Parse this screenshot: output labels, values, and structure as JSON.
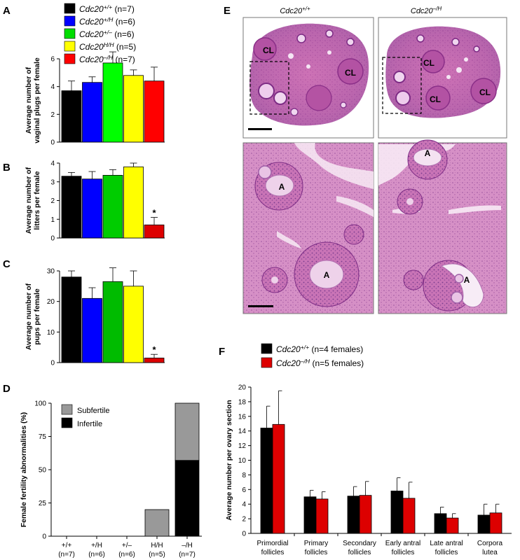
{
  "panel_letters": {
    "A": "A",
    "B": "B",
    "C": "C",
    "D": "D",
    "E": "E",
    "F": "F"
  },
  "genotype_legend": [
    {
      "base": "Cdc20",
      "sup": "+/+",
      "n": " (n=7)",
      "color": "#000000"
    },
    {
      "base": "Cdc20",
      "sup": "+/H",
      "n": " (n=6)",
      "color": "#0000ff"
    },
    {
      "base": "Cdc20",
      "sup": "+/–",
      "n": " (n=6)",
      "color": "#00dd00"
    },
    {
      "base": "Cdc20",
      "sup": "H/H",
      "n": " (n=5)",
      "color": "#ffff00"
    },
    {
      "base": "Cdc20",
      "sup": "–/H",
      "n": " (n=7)",
      "color": "#ff0000"
    }
  ],
  "chart_data": [
    {
      "id": "A",
      "type": "bar",
      "ylabel_lines": [
        "Average number of",
        "vaginal plugs per female"
      ],
      "ylim": [
        0,
        6
      ],
      "yticks": [
        0,
        2,
        4,
        6
      ],
      "values": [
        3.7,
        4.3,
        5.7,
        4.8,
        4.4
      ],
      "errors": [
        0.7,
        0.4,
        0.8,
        0.4,
        1.0
      ],
      "colors": [
        "#000000",
        "#0000ff",
        "#00ff00",
        "#ffff00",
        "#ff0000"
      ],
      "stars": []
    },
    {
      "id": "B",
      "type": "bar",
      "ylabel_lines": [
        "Average number of",
        "litters per female"
      ],
      "ylim": [
        0,
        4
      ],
      "yticks": [
        0,
        1,
        2,
        3,
        4
      ],
      "values": [
        3.3,
        3.15,
        3.35,
        3.8,
        0.7
      ],
      "errors": [
        0.2,
        0.4,
        0.3,
        0.2,
        0.4
      ],
      "colors": [
        "#000000",
        "#0000ff",
        "#00cc00",
        "#ffff00",
        "#dd0000"
      ],
      "stars": [
        4
      ],
      "star_text": "*"
    },
    {
      "id": "C",
      "type": "bar",
      "ylabel_lines": [
        "Average number of",
        "pups per female"
      ],
      "ylim": [
        0,
        30
      ],
      "yticks": [
        0,
        10,
        20,
        30
      ],
      "values": [
        28,
        21,
        26.5,
        25,
        1.5
      ],
      "errors": [
        2,
        3.5,
        4.5,
        5,
        1.2
      ],
      "colors": [
        "#000000",
        "#0000ff",
        "#00bb00",
        "#ffff00",
        "#dd0000"
      ],
      "stars": [
        4
      ],
      "star_text": "*"
    },
    {
      "id": "D",
      "type": "bar",
      "ylabel": "Female fertility abnormalities (%)",
      "ylim": [
        0,
        100
      ],
      "yticks": [
        0,
        25,
        50,
        75,
        100
      ],
      "categories": [
        "+/+",
        "+/H",
        "+/–",
        "H/H",
        "–/H"
      ],
      "ns": [
        "(n=7)",
        "(n=6)",
        "(n=6)",
        "(n=5)",
        "(n=7)"
      ],
      "series": [
        {
          "name": "Infertile",
          "color": "#000000",
          "values": [
            0,
            0,
            0,
            0,
            57
          ]
        },
        {
          "name": "Subfertile",
          "color": "#999999",
          "values": [
            0,
            0,
            0,
            20,
            43
          ]
        }
      ]
    },
    {
      "id": "F",
      "type": "bar",
      "ylabel": "Average number per ovary section",
      "ylim": [
        0,
        20
      ],
      "yticks": [
        0,
        2,
        4,
        6,
        8,
        10,
        12,
        14,
        16,
        18,
        20
      ],
      "categories": [
        [
          "Primordial",
          "follicles"
        ],
        [
          "Primary",
          "follicles"
        ],
        [
          "Secondary",
          "follicles"
        ],
        [
          "Early antral",
          "follicles"
        ],
        [
          "Late antral",
          "follicles"
        ],
        [
          "Corpora",
          "lutea"
        ]
      ],
      "series": [
        {
          "base": "Cdc20",
          "sup": "+/+",
          "n": " (n=4 females)",
          "color": "#000000",
          "values": [
            14.4,
            5.0,
            5.1,
            5.8,
            2.7,
            2.5
          ],
          "errors": [
            3.0,
            0.9,
            1.3,
            1.8,
            0.9,
            1.5
          ]
        },
        {
          "base": "Cdc20",
          "sup": "–/H",
          "n": " (n=5 females)",
          "color": "#dd0000",
          "values": [
            14.9,
            4.7,
            5.2,
            4.8,
            2.1,
            2.8
          ],
          "errors": [
            4.6,
            1.0,
            1.9,
            2.2,
            0.6,
            1.2
          ]
        }
      ]
    }
  ],
  "histology": {
    "col_titles": [
      {
        "base": "Cdc20",
        "sup": "+/+"
      },
      {
        "base": "Cdc20",
        "sup": "–/H"
      }
    ],
    "labels": {
      "cl": "CL",
      "a": "A"
    }
  }
}
